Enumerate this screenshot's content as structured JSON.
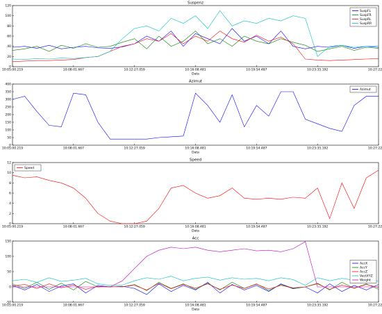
{
  "chart_data": [
    {
      "type": "line",
      "title": "Suspenz",
      "xlabel": "Data",
      "legend": "upper right",
      "categories": [
        "10:05:00.219",
        null,
        null,
        null,
        null,
        "10:08:01.667",
        null,
        null,
        null,
        null,
        "10:12:27.059",
        null,
        null,
        null,
        null,
        "10:16:08.481",
        null,
        null,
        null,
        null,
        "10:19:54.487",
        null,
        null,
        null,
        null,
        "10:23:35.192",
        null,
        null,
        null,
        null,
        "10:27:22.328"
      ],
      "ylim": [
        0,
        120
      ],
      "yticks": [
        0,
        20,
        40,
        60,
        80,
        100,
        120
      ],
      "series": [
        {
          "name": "SuspFL",
          "color": "#0000ff",
          "values": [
            38,
            40,
            36,
            42,
            35,
            38,
            40,
            37,
            36,
            39,
            45,
            60,
            50,
            70,
            40,
            65,
            55,
            45,
            75,
            50,
            60,
            45,
            70,
            40,
            35,
            40,
            38,
            42,
            36,
            40,
            38
          ]
        },
        {
          "name": "SuspFR",
          "color": "#008000",
          "values": [
            32,
            35,
            40,
            30,
            42,
            36,
            45,
            38,
            40,
            48,
            55,
            35,
            60,
            40,
            50,
            70,
            45,
            55,
            40,
            60,
            50,
            45,
            55,
            48,
            42,
            30,
            35,
            40,
            32,
            38,
            36
          ]
        },
        {
          "name": "SuspRL",
          "color": "#ff0000",
          "values": [
            10,
            11,
            12,
            12,
            13,
            14,
            18,
            20,
            30,
            40,
            45,
            55,
            50,
            65,
            45,
            60,
            50,
            70,
            55,
            48,
            62,
            50,
            58,
            45,
            15,
            13,
            12,
            13,
            14,
            15,
            16
          ]
        },
        {
          "name": "SuspRR",
          "color": "#00bfbf",
          "values": [
            15,
            14,
            16,
            15,
            17,
            16,
            18,
            20,
            30,
            55,
            75,
            80,
            70,
            95,
            85,
            100,
            75,
            110,
            80,
            90,
            85,
            95,
            90,
            100,
            95,
            20,
            40,
            42,
            38,
            40,
            41
          ]
        }
      ]
    },
    {
      "type": "line",
      "title": "Azimut",
      "xlabel": "Data",
      "legend": "upper right",
      "categories": [
        "10:05:00.219",
        null,
        null,
        null,
        null,
        "10:08:01.667",
        null,
        null,
        null,
        null,
        "10:12:27.059",
        null,
        null,
        null,
        null,
        "10:16:08.481",
        null,
        null,
        null,
        null,
        "10:19:54.487",
        null,
        null,
        null,
        null,
        "10:23:35.192",
        null,
        null,
        null,
        null,
        "10:27:22.328"
      ],
      "ylim": [
        0,
        400
      ],
      "yticks": [
        0,
        50,
        100,
        150,
        200,
        250,
        300,
        350,
        400
      ],
      "series": [
        {
          "name": "Azimut",
          "color": "#0000ff",
          "values": [
            300,
            320,
            220,
            130,
            120,
            340,
            330,
            150,
            40,
            40,
            40,
            40,
            50,
            55,
            60,
            340,
            260,
            150,
            330,
            120,
            260,
            190,
            350,
            350,
            170,
            140,
            110,
            90,
            260,
            320,
            320
          ]
        }
      ]
    },
    {
      "type": "line",
      "title": "Speed",
      "xlabel": "Data",
      "legend": "upper left",
      "categories": [
        "10:05:00.219",
        null,
        null,
        null,
        null,
        "10:08:01.667",
        null,
        null,
        null,
        null,
        "10:12:27.059",
        null,
        null,
        null,
        null,
        "10:16:08.481",
        null,
        null,
        null,
        null,
        "10:19:54.487",
        null,
        null,
        null,
        null,
        "10:23:35.192",
        null,
        null,
        null,
        null,
        "10:27:22.328"
      ],
      "ylim": [
        0,
        12
      ],
      "yticks": [
        0,
        2,
        4,
        6,
        8,
        10,
        12
      ],
      "series": [
        {
          "name": "Speed",
          "color": "#ff0000",
          "values": [
            9.5,
            9,
            9.2,
            8.5,
            8,
            7,
            5,
            2,
            0.5,
            0,
            0,
            0.5,
            3,
            7,
            7.5,
            6,
            5,
            5.5,
            7,
            5,
            4.8,
            5,
            4.8,
            5.2,
            5,
            7,
            1,
            8,
            3,
            9,
            10.5
          ]
        }
      ]
    },
    {
      "type": "line",
      "title": "Acc",
      "xlabel": "Data",
      "legend": "center right",
      "categories": [
        "10:05:00.219",
        null,
        null,
        null,
        null,
        "10:08:01.667",
        null,
        null,
        null,
        null,
        "10:12:27.059",
        null,
        null,
        null,
        null,
        "10:16:08.481",
        null,
        null,
        null,
        null,
        "10:19:54.487",
        null,
        null,
        null,
        null,
        "10:23:35.192",
        null,
        null,
        null,
        null,
        "10:27:22.328"
      ],
      "ylim": [
        -50,
        150
      ],
      "yticks": [
        -50,
        0,
        50,
        100,
        150
      ],
      "series": [
        {
          "name": "AccX",
          "color": "#0000ff",
          "values": [
            5,
            -10,
            8,
            -15,
            3,
            10,
            -20,
            5,
            0,
            2,
            -5,
            -25,
            10,
            -15,
            5,
            -10,
            15,
            -20,
            8,
            -10,
            5,
            -15,
            10,
            -5,
            0,
            -20,
            10,
            -15,
            5,
            -10,
            8
          ]
        },
        {
          "name": "AccY",
          "color": "#008000",
          "values": [
            10,
            -5,
            15,
            -8,
            12,
            -10,
            18,
            0,
            1,
            0,
            8,
            -12,
            15,
            -5,
            10,
            -8,
            12,
            -10,
            15,
            -5,
            10,
            -12,
            8,
            -6,
            0,
            12,
            -10,
            15,
            -5,
            10,
            -8
          ]
        },
        {
          "name": "AccZ",
          "color": "#ff0000",
          "values": [
            3,
            8,
            -5,
            10,
            -3,
            6,
            -8,
            2,
            0,
            1,
            5,
            -10,
            12,
            -6,
            8,
            -4,
            10,
            -8,
            6,
            -5,
            9,
            -7,
            5,
            -3,
            0,
            10,
            -8,
            6,
            -4,
            8,
            -2
          ]
        },
        {
          "name": "VectXYZ",
          "color": "#00bfbf",
          "values": [
            20,
            25,
            15,
            30,
            18,
            22,
            28,
            10,
            5,
            6,
            20,
            30,
            25,
            35,
            20,
            28,
            32,
            22,
            30,
            25,
            28,
            20,
            30,
            24,
            5,
            30,
            20,
            28,
            22,
            25,
            18
          ]
        },
        {
          "name": "Weight",
          "color": "#bf00bf",
          "values": [
            0,
            0,
            0,
            0,
            0,
            0,
            0,
            0,
            0,
            20,
            60,
            100,
            120,
            130,
            125,
            130,
            120,
            115,
            120,
            125,
            118,
            120,
            115,
            125,
            148,
            0,
            0,
            0,
            0,
            0,
            0
          ]
        }
      ]
    }
  ]
}
